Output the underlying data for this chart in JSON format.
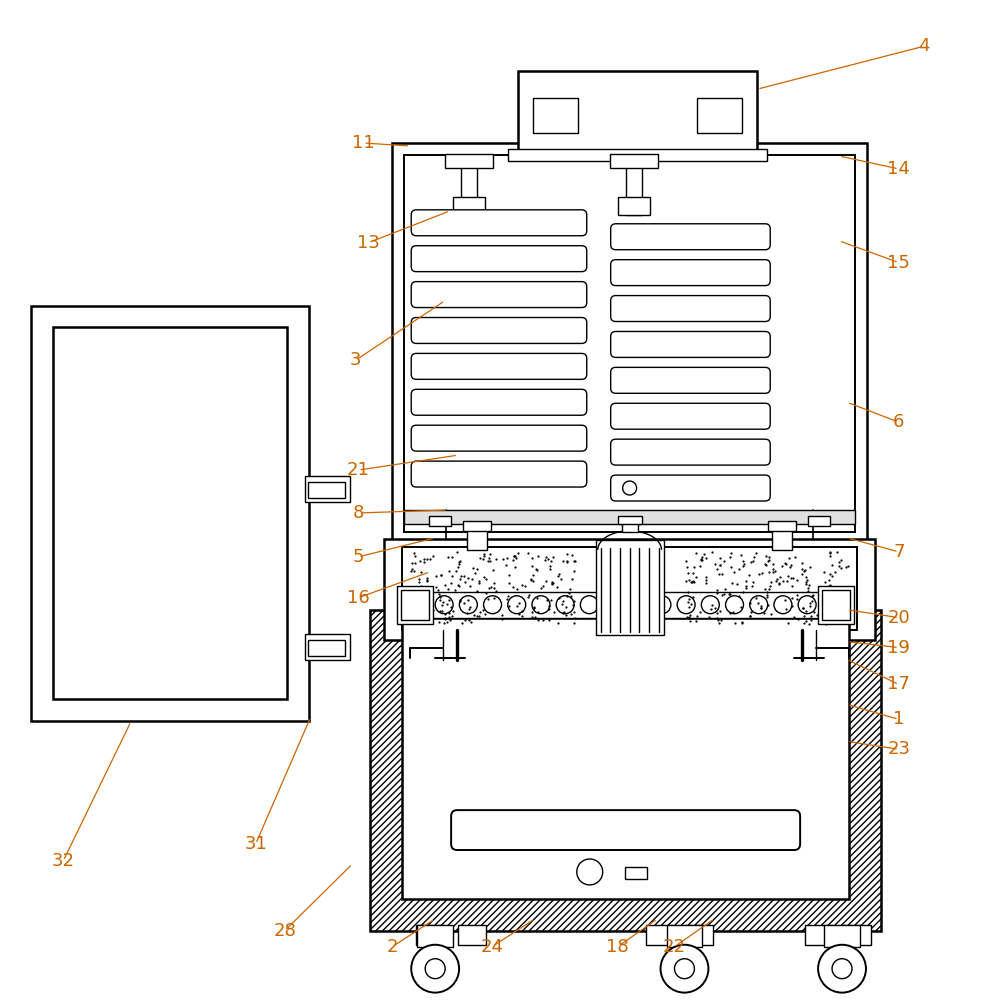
{
  "bg_color": "#ffffff",
  "line_color": "#000000",
  "label_color": "#cc6600",
  "label_fontsize": 13,
  "fig_width": 9.9,
  "fig_height": 10.0
}
